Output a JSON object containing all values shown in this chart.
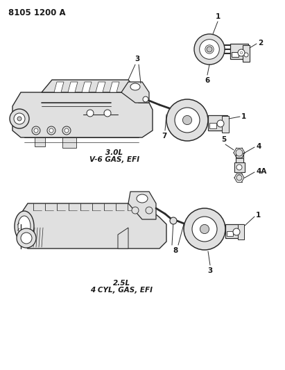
{
  "title": "8105 1200 A",
  "label_30L_line1": "3.0L",
  "label_30L_line2": "V-6 GAS, EFI",
  "label_25L_line1": "2.5L",
  "label_25L_line2": "4 CYL, GAS, EFI",
  "bg_color": "#ffffff",
  "text_color": "#1a1a1a",
  "line_color": "#2a2a2a",
  "gray_fill": "#c8c8c8",
  "light_gray": "#e0e0e0",
  "mid_gray": "#aaaaaa"
}
